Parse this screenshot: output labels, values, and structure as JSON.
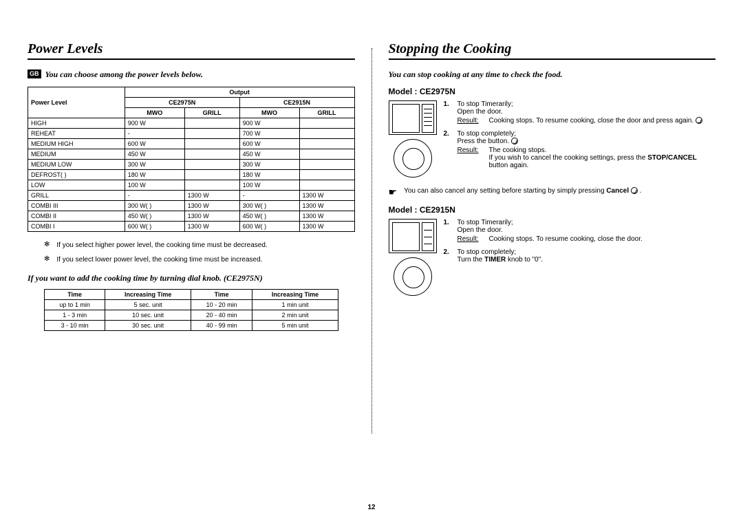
{
  "page_number": "12",
  "left": {
    "title": "Power Levels",
    "gb": "GB",
    "intro": "You can choose among the power levels below.",
    "table": {
      "headers": {
        "power_level": "Power Level",
        "output": "Output",
        "model_a": "CE2975N",
        "model_b": "CE2915N",
        "mwo": "MWO",
        "grill": "GRILL"
      },
      "rows": [
        {
          "name": "HIGH",
          "a_mwo": "900 W",
          "a_grill": "",
          "b_mwo": "900 W",
          "b_grill": ""
        },
        {
          "name": "REHEAT",
          "a_mwo": "-",
          "a_grill": "",
          "b_mwo": "700 W",
          "b_grill": ""
        },
        {
          "name": "MEDIUM HIGH",
          "a_mwo": "600 W",
          "a_grill": "",
          "b_mwo": "600 W",
          "b_grill": ""
        },
        {
          "name": "MEDIUM",
          "a_mwo": "450 W",
          "a_grill": "",
          "b_mwo": "450 W",
          "b_grill": ""
        },
        {
          "name": "MEDIUM LOW",
          "a_mwo": "300 W",
          "a_grill": "",
          "b_mwo": "300 W",
          "b_grill": ""
        },
        {
          "name": "DEFROST(    )",
          "a_mwo": "180 W",
          "a_grill": "",
          "b_mwo": "180 W",
          "b_grill": ""
        },
        {
          "name": "LOW",
          "a_mwo": "100 W",
          "a_grill": "",
          "b_mwo": "100 W",
          "b_grill": ""
        },
        {
          "name": "GRILL",
          "a_mwo": "-",
          "a_grill": "1300 W",
          "b_mwo": "-",
          "b_grill": "1300 W"
        },
        {
          "name": "COMBI III",
          "a_mwo": "300 W(      )",
          "a_grill": "1300 W",
          "b_mwo": "300 W(      )",
          "b_grill": "1300 W"
        },
        {
          "name": "COMBI II",
          "a_mwo": "450 W(      )",
          "a_grill": "1300 W",
          "b_mwo": "450 W(      )",
          "b_grill": "1300 W"
        },
        {
          "name": "COMBI I",
          "a_mwo": "600 W(      )",
          "a_grill": "1300 W",
          "b_mwo": "600 W(      )",
          "b_grill": "1300 W"
        }
      ]
    },
    "note1": "If you select higher power level, the cooking time must be decreased.",
    "note2": "If you select lower power level, the cooking time must be increased.",
    "sub_intro": "If you want to add the cooking time by turning dial knob. (CE2975N)",
    "time_table": {
      "h_time": "Time",
      "h_inc": "Increasing Time",
      "rows": [
        {
          "t1": "up to 1 min",
          "i1": "5 sec. unit",
          "t2": "10 - 20 min",
          "i2": "1 min unit"
        },
        {
          "t1": "1 - 3 min",
          "i1": "10 sec. unit",
          "t2": "20 - 40 min",
          "i2": "2 min unit"
        },
        {
          "t1": "3 - 10 min",
          "i1": "30 sec. unit",
          "t2": "40 - 99 min",
          "i2": "5 min unit"
        }
      ]
    }
  },
  "right": {
    "title": "Stopping the Cooking",
    "intro": "You can stop cooking at any time to check the food.",
    "model_a": "Model : CE2975N",
    "model_b": "Model : CE2915N",
    "a_step1_title": "To stop Timerarily;",
    "a_step1_body": "Open the door.",
    "a_step1_result": "Cooking stops. To resume cooking, close the door and press      again.",
    "a_step2_title": "To stop completely;",
    "a_step2_body": "Press the      button.",
    "a_step2_result": "The cooking stops.",
    "a_step2_extra_pre": "If you wish to cancel the cooking settings, press the ",
    "a_step2_extra_bold": "STOP/CANCEL",
    "a_step2_extra_post": " button again.",
    "tip_pre": "You can also cancel any setting before starting by simply pressing ",
    "tip_bold": "Cancel",
    "tip_post": "     .",
    "b_step1_title": "To stop Timerarily;",
    "b_step1_body": "Open the door.",
    "b_step1_result": "Cooking stops. To resume cooking, close the door.",
    "b_step2_title": "To stop completely;",
    "b_step2_body_pre": "Turn the ",
    "b_step2_body_bold": "TIMER",
    "b_step2_body_post": " knob to \"0\".",
    "result_label": "Result:"
  }
}
